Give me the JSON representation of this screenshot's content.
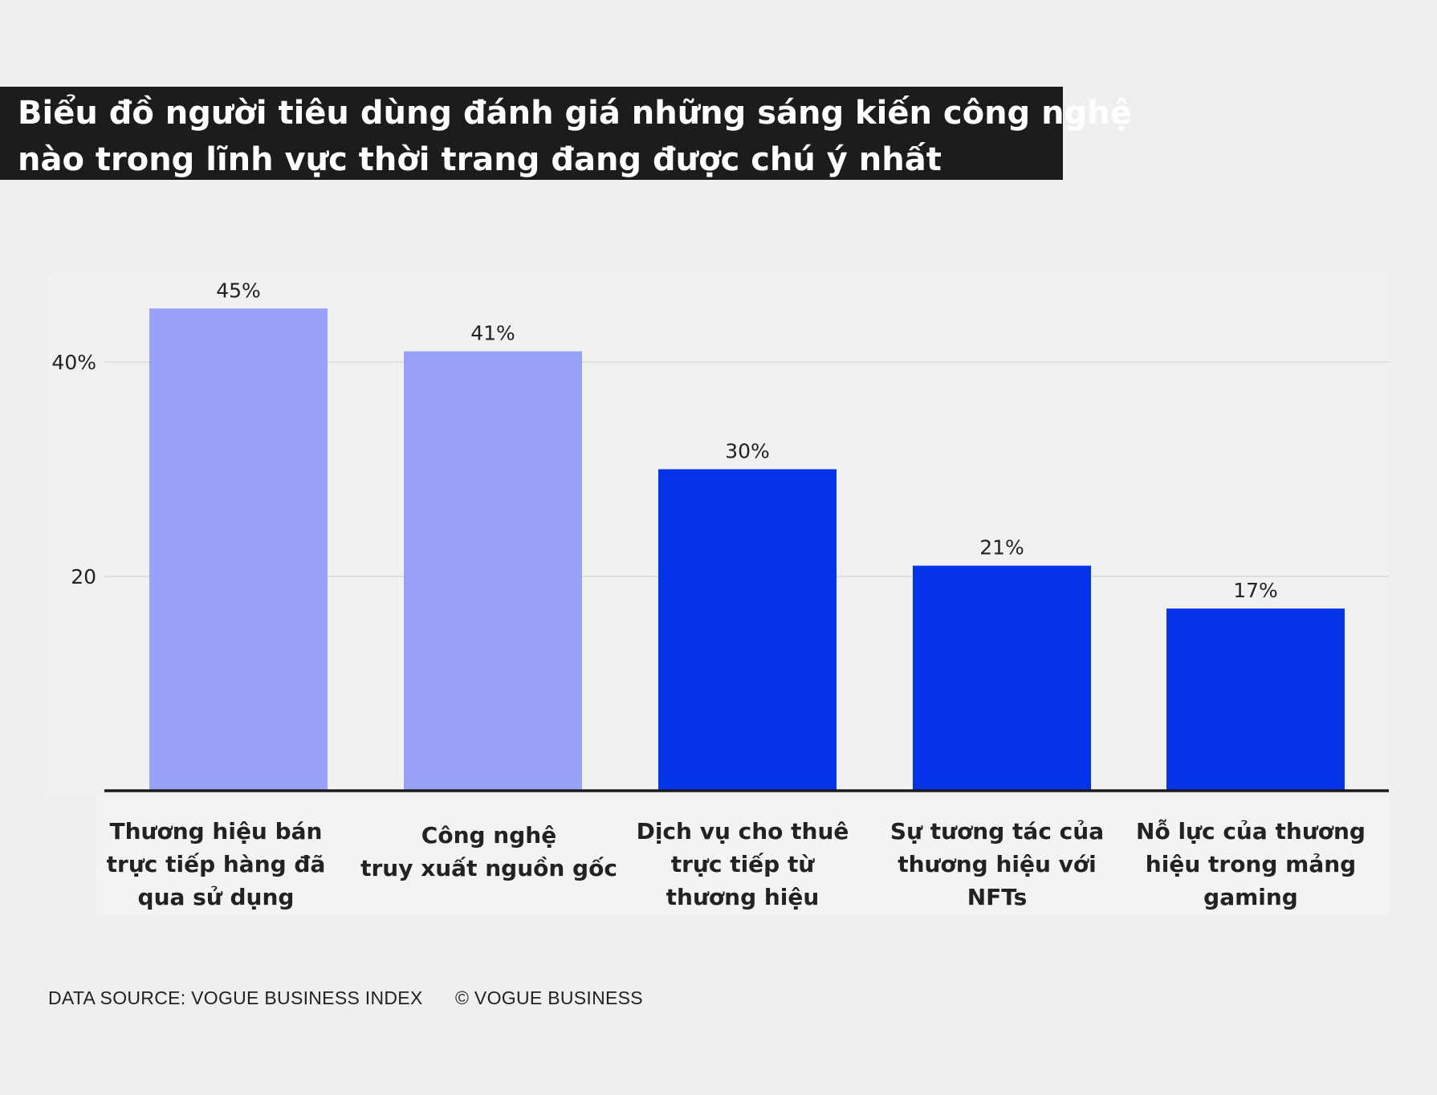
{
  "chart_data": {
    "type": "bar",
    "title_lines": [
      "Biểu đồ người tiêu dùng đánh giá những sáng kiến công nghệ",
      "nào trong lĩnh vực thời trang đang được chú ý nhất"
    ],
    "categories": [
      [
        "Thương hiệu bán",
        "trực tiếp hàng đã",
        "qua sử dụng"
      ],
      [
        "Công nghệ",
        "truy xuất nguồn gốc"
      ],
      [
        "Dịch vụ cho thuê",
        "trực tiếp từ",
        "thương hiệu"
      ],
      [
        "Sự tương tác của",
        "thương hiệu với",
        "NFTs"
      ],
      [
        "Nỗ lực của thương",
        "hiệu trong mảng",
        "gaming"
      ]
    ],
    "values": [
      45,
      41,
      30,
      21,
      17
    ],
    "data_labels": [
      "45%",
      "41%",
      "30%",
      "21%",
      "17%"
    ],
    "bar_colors": [
      "#98a2f8",
      "#98a2f8",
      "#0533ea",
      "#0533ea",
      "#0533ea"
    ],
    "yticks": [
      {
        "value": 20,
        "label": "20"
      },
      {
        "value": 40,
        "label": "40%"
      }
    ],
    "ylim": [
      0,
      50
    ],
    "grid": true,
    "xlabel": "",
    "ylabel": ""
  },
  "footer": {
    "source": "DATA SOURCE: VOGUE BUSINESS INDEX",
    "copyright": "© VOGUE BUSINESS"
  }
}
